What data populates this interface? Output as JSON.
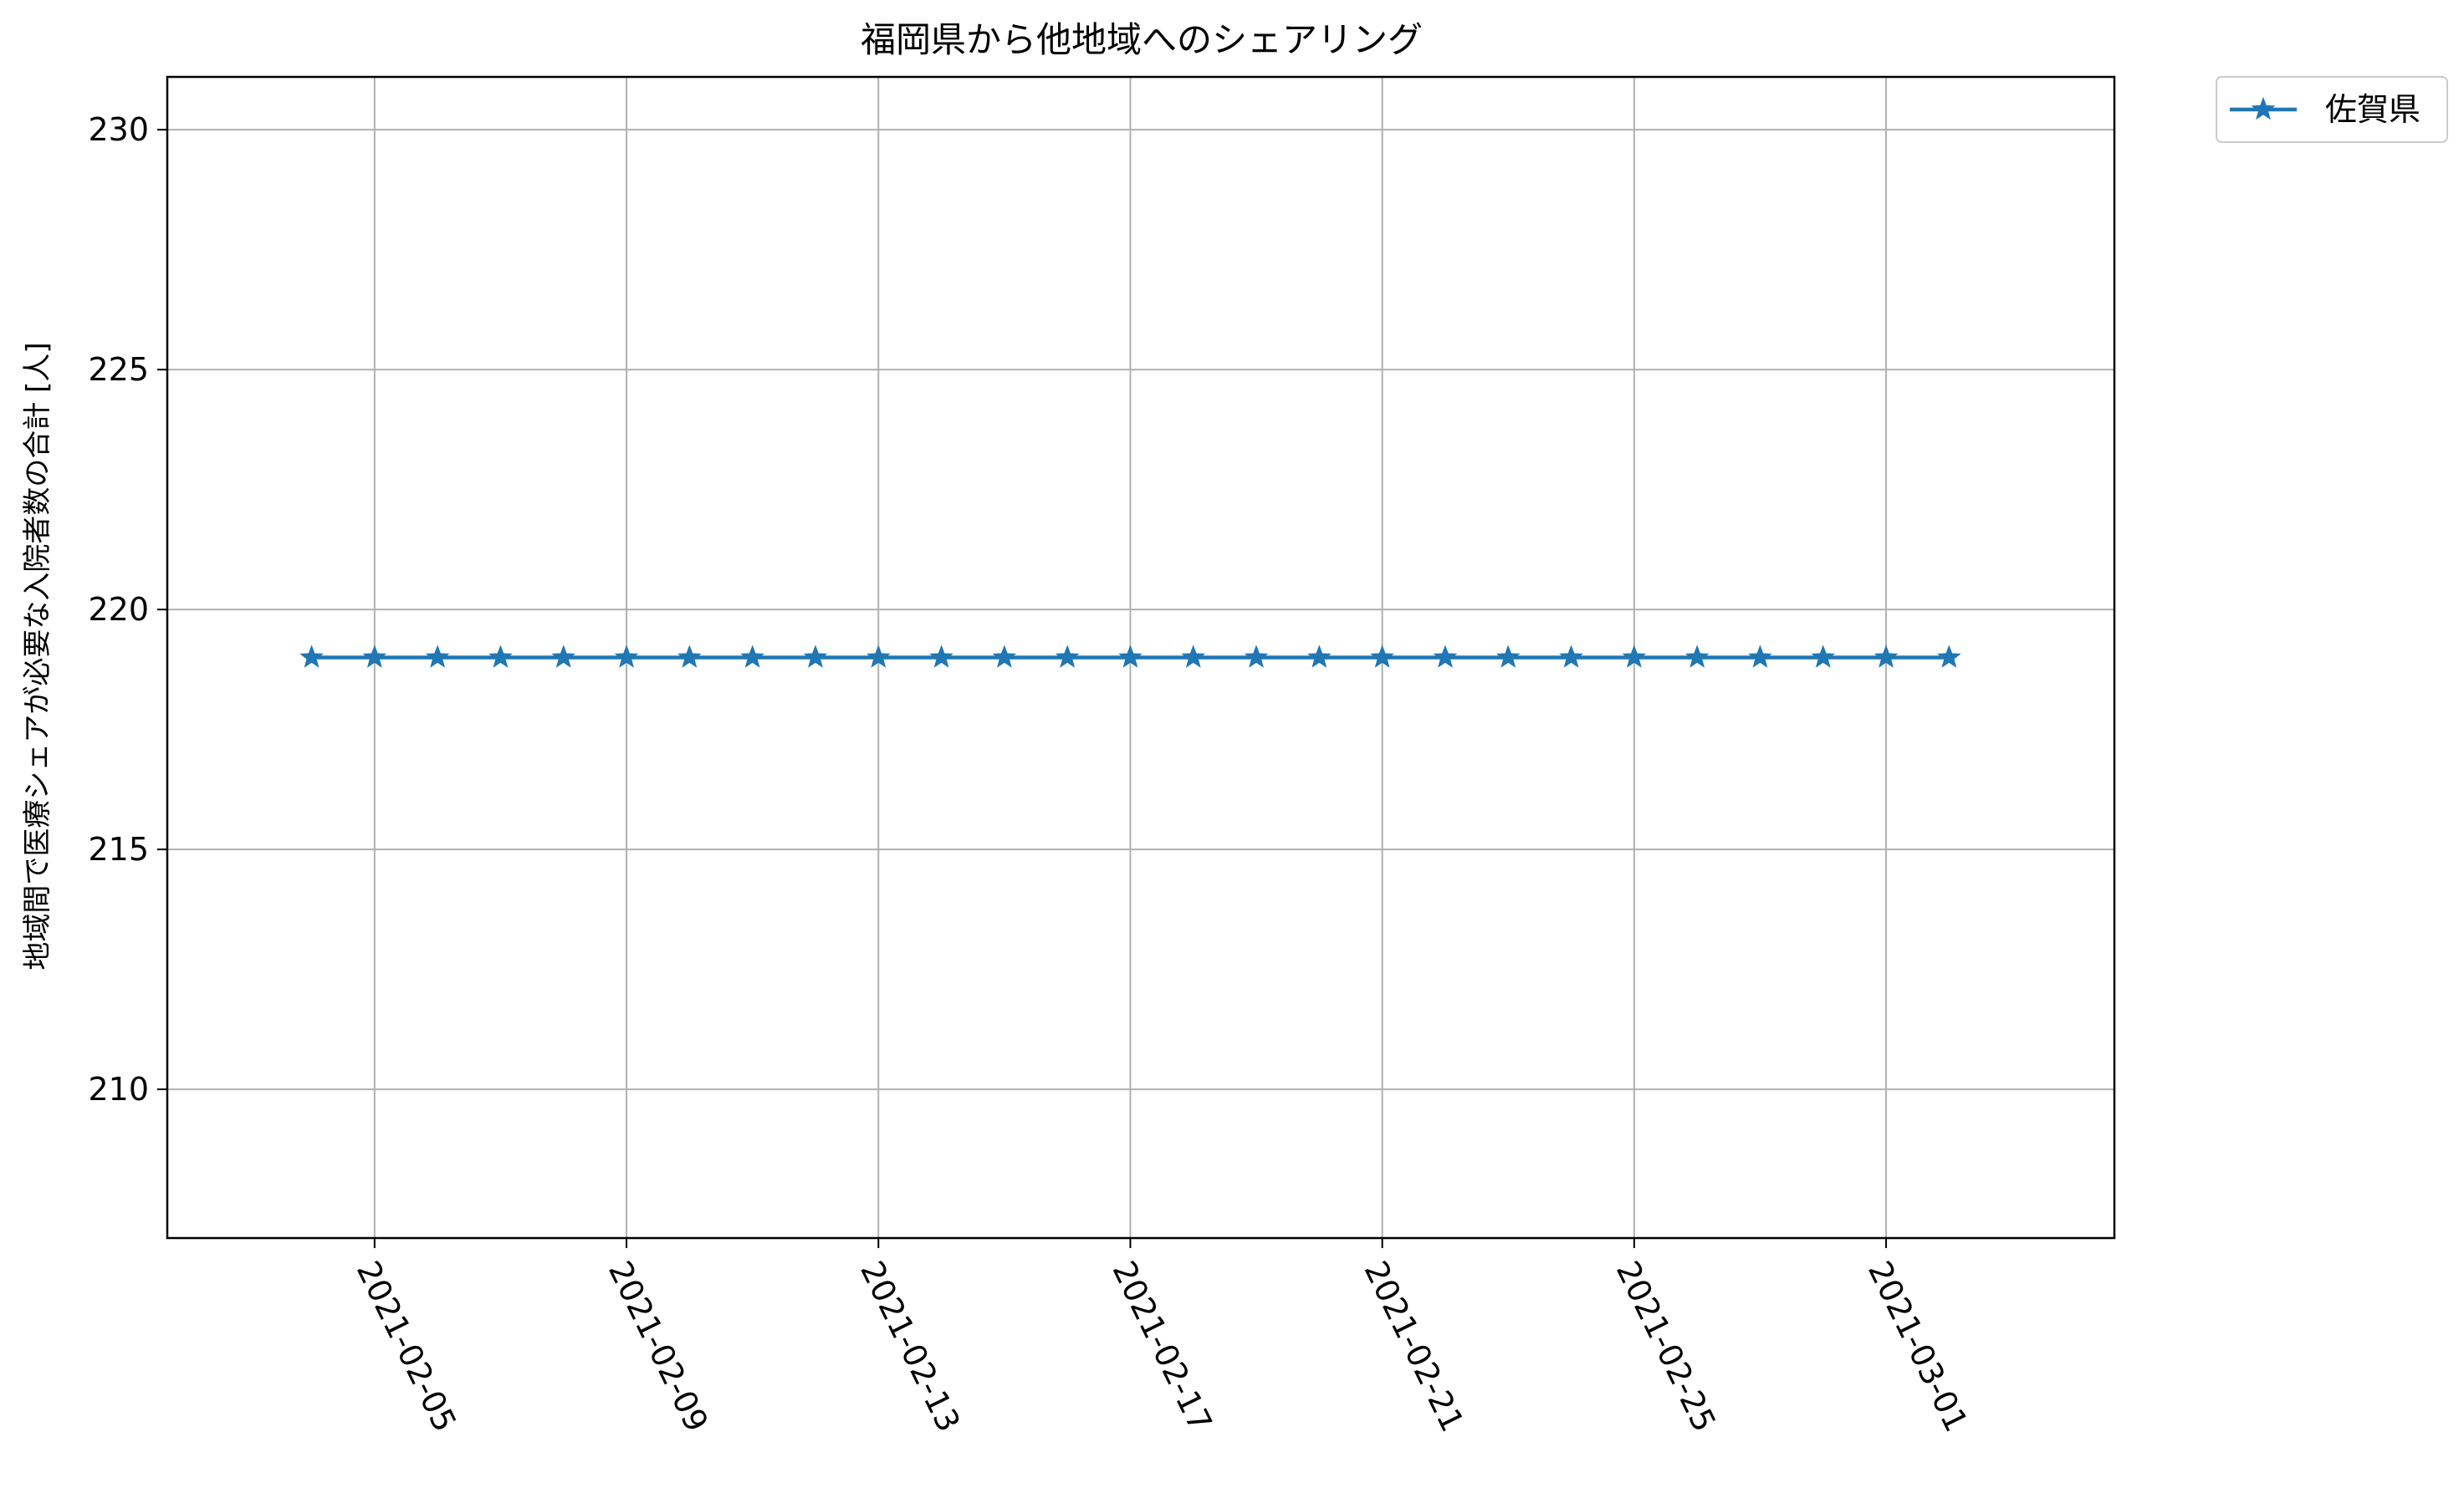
{
  "chart_data": {
    "type": "line",
    "title": "福岡県から他地域へのシェアリング",
    "xlabel": "",
    "ylabel": "地域間で医療シェアが必要な入院者数の合計 [人]",
    "x": [
      "2021-02-04",
      "2021-02-05",
      "2021-02-06",
      "2021-02-07",
      "2021-02-08",
      "2021-02-09",
      "2021-02-10",
      "2021-02-11",
      "2021-02-12",
      "2021-02-13",
      "2021-02-14",
      "2021-02-15",
      "2021-02-16",
      "2021-02-17",
      "2021-02-18",
      "2021-02-19",
      "2021-02-20",
      "2021-02-21",
      "2021-02-22",
      "2021-02-23",
      "2021-02-24",
      "2021-02-25",
      "2021-02-26",
      "2021-02-27",
      "2021-02-28",
      "2021-03-01",
      "2021-03-02"
    ],
    "series": [
      {
        "name": "佐賀県",
        "color": "#1f77b4",
        "marker": "star",
        "values": [
          219,
          219,
          219,
          219,
          219,
          219,
          219,
          219,
          219,
          219,
          219,
          219,
          219,
          219,
          219,
          219,
          219,
          219,
          219,
          219,
          219,
          219,
          219,
          219,
          219,
          219,
          219
        ]
      }
    ],
    "x_ticks": [
      "2021-02-05",
      "2021-02-09",
      "2021-02-13",
      "2021-02-17",
      "2021-02-21",
      "2021-02-25",
      "2021-03-01"
    ],
    "y_ticks": [
      210,
      215,
      220,
      225,
      230
    ],
    "xlim": [
      "2021-02-01T17:00",
      "2021-03-04T15:00"
    ],
    "ylim": [
      206.9,
      231.1
    ],
    "grid": true,
    "legend_position": "outside-top-right",
    "colors": {
      "grid": "#b0b0b0",
      "axes": "#000000"
    }
  }
}
